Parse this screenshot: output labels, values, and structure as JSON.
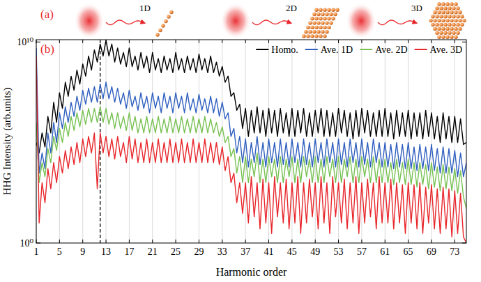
{
  "illustration": {
    "panel_label": "(a)",
    "labels": [
      "1D",
      "2D",
      "3D"
    ]
  },
  "chart_data": {
    "type": "line",
    "panel_label": "(b)",
    "x_label": "Harmonic order",
    "y_label": "HHG Intensity (arb.units)",
    "log": "y",
    "grid": true,
    "legend": "upper right",
    "xlim": [
      1,
      75
    ],
    "ylim": [
      1,
      13000000000.0
    ],
    "xticks": [
      1,
      5,
      9,
      13,
      17,
      21,
      25,
      29,
      33,
      37,
      41,
      45,
      49,
      53,
      57,
      61,
      65,
      69,
      73
    ],
    "yticks": [
      {
        "value": 1,
        "label": "10⁰"
      },
      {
        "value": 10000000000.0,
        "label": "10¹⁰"
      }
    ],
    "reference_lines": [
      {
        "x": 12,
        "line_style": "dashed",
        "color": "#000000"
      }
    ],
    "x": [
      1,
      1.5,
      2,
      2.5,
      3,
      3.5,
      4,
      4.5,
      5,
      5.5,
      6,
      6.5,
      7,
      7.5,
      8,
      8.5,
      9,
      9.5,
      10,
      10.5,
      11,
      11.5,
      12,
      12.5,
      13,
      13.5,
      14,
      14.5,
      15,
      15.5,
      16,
      16.5,
      17,
      17.5,
      18,
      18.5,
      19,
      19.5,
      20,
      20.5,
      21,
      21.5,
      22,
      22.5,
      23,
      23.5,
      24,
      24.5,
      25,
      25.5,
      26,
      26.5,
      27,
      27.5,
      28,
      28.5,
      29,
      29.5,
      30,
      30.5,
      31,
      31.5,
      32,
      32.5,
      33,
      33.5,
      34,
      34.5,
      35,
      35.5,
      36,
      36.5,
      37,
      37.5,
      38,
      38.5,
      39,
      39.5,
      40,
      40.5,
      41,
      41.5,
      42,
      42.5,
      43,
      43.5,
      44,
      44.5,
      45,
      45.5,
      46,
      46.5,
      47,
      47.5,
      48,
      48.5,
      49,
      49.5,
      50,
      50.5,
      51,
      51.5,
      52,
      52.5,
      53,
      53.5,
      54,
      54.5,
      55,
      55.5,
      56,
      56.5,
      57,
      57.5,
      58,
      58.5,
      59,
      59.5,
      60,
      60.5,
      61,
      61.5,
      62,
      62.5,
      63,
      63.5,
      64,
      64.5,
      65,
      65.5,
      66,
      66.5,
      67,
      67.5,
      68,
      68.5,
      69,
      69.5,
      70,
      70.5,
      71,
      71.5,
      72,
      72.5,
      73,
      73.5,
      74,
      74.5,
      75
    ],
    "series": [
      {
        "name": "Homo.",
        "color": "#000000",
        "values": [
          100000.0,
          30000.0,
          300000.0,
          60000.0,
          2000000.0,
          300000.0,
          10000000.0,
          1000000.0,
          30000000.0,
          5000000.0,
          100000000.0,
          20000000.0,
          200000000.0,
          40000000.0,
          400000000.0,
          80000000.0,
          800000000.0,
          200000000.0,
          2000000000.0,
          400000000.0,
          4000000000.0,
          1000000000.0,
          8000000000.0,
          2000000000.0,
          12000000000.0,
          2000000000.0,
          8000000000.0,
          1000000000.0,
          5000000000.0,
          800000000.0,
          3000000000.0,
          600000000.0,
          5000000000.0,
          600000000.0,
          2000000000.0,
          400000000.0,
          3000000000.0,
          500000000.0,
          2000000000.0,
          300000000.0,
          3000000000.0,
          400000000.0,
          1500000000.0,
          300000000.0,
          2000000000.0,
          400000000.0,
          1500000000.0,
          300000000.0,
          3000000000.0,
          400000000.0,
          1500000000.0,
          300000000.0,
          2000000000.0,
          400000000.0,
          1500000000.0,
          300000000.0,
          2500000000.0,
          400000000.0,
          1500000000.0,
          300000000.0,
          2000000000.0,
          300000000.0,
          1000000000.0,
          200000000.0,
          600000000.0,
          100000000.0,
          200000000.0,
          20000000.0,
          30000000.0,
          4000000.0,
          8000000.0,
          500000.0,
          5000000.0,
          200000.0,
          4000000.0,
          300000.0,
          6000000.0,
          300000.0,
          4000000.0,
          200000.0,
          5000000.0,
          300000.0,
          4000000.0,
          200000.0,
          5000000.0,
          300000.0,
          3000000.0,
          200000.0,
          5000000.0,
          200000.0,
          4000000.0,
          300000.0,
          5000000.0,
          200000.0,
          3000000.0,
          200000.0,
          4000000.0,
          300000.0,
          5000000.0,
          200000.0,
          4000000.0,
          200000.0,
          3000000.0,
          200000.0,
          5000000.0,
          300000.0,
          4000000.0,
          200000.0,
          3000000.0,
          150000.0,
          4000000.0,
          200000.0,
          5000000.0,
          300000.0,
          4000000.0,
          200000.0,
          3000000.0,
          200000.0,
          4000000.0,
          200000.0,
          5000000.0,
          200000.0,
          3000000.0,
          150000.0,
          4000000.0,
          200000.0,
          3000000.0,
          200000.0,
          4000000.0,
          150000.0,
          3000000.0,
          200000.0,
          3000000.0,
          150000.0,
          4000000.0,
          200000.0,
          3000000.0,
          150000.0,
          2000000.0,
          100000.0,
          3000000.0,
          150000.0,
          2000000.0,
          100000.0,
          2000000.0,
          100000.0,
          1500000.0,
          80000.0,
          100000.0
        ]
      },
      {
        "name": "Ave. 1D",
        "color": "#2f5fbf",
        "values": [
          5000000000.0,
          3000.0,
          30000.0,
          5000.0,
          300000.0,
          30000.0,
          1000000.0,
          100000.0,
          3000000.0,
          500000.0,
          6000000.0,
          1000000.0,
          10000000.0,
          2000000.0,
          20000000.0,
          4000000.0,
          40000000.0,
          8000000.0,
          50000000.0,
          10000000.0,
          60000000.0,
          10000000.0,
          80000000.0,
          15000000.0,
          100000000.0,
          15000000.0,
          60000000.0,
          10000000.0,
          50000000.0,
          8000000.0,
          30000000.0,
          5000000.0,
          40000000.0,
          6000000.0,
          20000000.0,
          4000000.0,
          30000000.0,
          5000000.0,
          20000000.0,
          3000000.0,
          30000000.0,
          5000000.0,
          20000000.0,
          3000000.0,
          30000000.0,
          5000000.0,
          20000000.0,
          3000000.0,
          30000000.0,
          5000000.0,
          20000000.0,
          3000000.0,
          30000000.0,
          4000000.0,
          15000000.0,
          3000000.0,
          25000000.0,
          4000000.0,
          15000000.0,
          3000000.0,
          20000000.0,
          3000000.0,
          15000000.0,
          2000000.0,
          10000000.0,
          1500000.0,
          3000000.0,
          200000.0,
          500000.0,
          30000.0,
          200000.0,
          10000.0,
          150000.0,
          6000.0,
          100000.0,
          10000.0,
          200000.0,
          8000.0,
          100000.0,
          6000.0,
          150000.0,
          10000.0,
          100000.0,
          6000.0,
          150000.0,
          8000.0,
          100000.0,
          6000.0,
          150000.0,
          10000.0,
          100000.0,
          6000.0,
          150000.0,
          8000.0,
          100000.0,
          6000.0,
          150000.0,
          10000.0,
          100000.0,
          6000.0,
          150000.0,
          10000.0,
          100000.0,
          6000.0,
          150000.0,
          8000.0,
          100000.0,
          6000.0,
          150000.0,
          10000.0,
          100000.0,
          6000.0,
          150000.0,
          8000.0,
          100000.0,
          6000.0,
          150000.0,
          10000.0,
          100000.0,
          6000.0,
          100000.0,
          6000.0,
          80000.0,
          5000.0,
          100000.0,
          6000.0,
          80000.0,
          5000.0,
          100000.0,
          5000.0,
          60000.0,
          4000.0,
          80000.0,
          5000.0,
          60000.0,
          4000.0,
          80000.0,
          4000.0,
          50000.0,
          3000.0,
          60000.0,
          3000.0,
          50000.0,
          3000.0,
          40000.0,
          2000.0,
          30000.0,
          2000.0,
          10000.0
        ]
      },
      {
        "name": "Ave. 2D",
        "color": "#77c152",
        "values": [
          1000000.0,
          1000.0,
          10000.0,
          2000.0,
          50000.0,
          10000.0,
          200000.0,
          40000.0,
          500000.0,
          100000.0,
          1000000.0,
          200000.0,
          2000000.0,
          400000.0,
          3000000.0,
          600000.0,
          4000000.0,
          800000.0,
          5000000.0,
          1000000.0,
          5000000.0,
          1000000.0,
          6000000.0,
          1000000.0,
          5000000.0,
          800000.0,
          3000000.0,
          500000.0,
          3000000.0,
          500000.0,
          2000000.0,
          400000.0,
          3000000.0,
          400000.0,
          2000000.0,
          300000.0,
          1500000.0,
          300000.0,
          2000000.0,
          300000.0,
          1500000.0,
          300000.0,
          2000000.0,
          300000.0,
          1500000.0,
          300000.0,
          2000000.0,
          300000.0,
          1500000.0,
          300000.0,
          2000000.0,
          300000.0,
          1500000.0,
          300000.0,
          2000000.0,
          300000.0,
          1500000.0,
          300000.0,
          2000000.0,
          300000.0,
          1500000.0,
          300000.0,
          1000000.0,
          200000.0,
          600000.0,
          100000.0,
          200000.0,
          20000.0,
          50000.0,
          3000.0,
          20000.0,
          1000.0,
          20000.0,
          1000.0,
          15000.0,
          2000.0,
          30000.0,
          1000.0,
          15000.0,
          1000.0,
          20000.0,
          2000.0,
          15000.0,
          1000.0,
          20000.0,
          1000.0,
          15000.0,
          2000.0,
          20000.0,
          1000.0,
          15000.0,
          1000.0,
          20000.0,
          2000.0,
          15000.0,
          1000.0,
          20000.0,
          1000.0,
          15000.0,
          1000.0,
          20000.0,
          2000.0,
          15000.0,
          1000.0,
          20000.0,
          1000.0,
          15000.0,
          2000.0,
          20000.0,
          1000.0,
          15000.0,
          1000.0,
          20000.0,
          2000.0,
          15000.0,
          1000.0,
          20000.0,
          1000.0,
          15000.0,
          1000.0,
          15000.0,
          1000.0,
          10000.0,
          800.0,
          15000.0,
          1000.0,
          10000.0,
          800.0,
          15000.0,
          800.0,
          10000.0,
          600.0,
          10000.0,
          800.0,
          8000.0,
          500.0,
          10000.0,
          600.0,
          6000.0,
          400.0,
          8000.0,
          500.0,
          6000.0,
          400.0,
          5000.0,
          300.0,
          4000.0,
          200.0,
          50
        ]
      },
      {
        "name": "Ave. 3D",
        "color": "#e8262b",
        "values": [
          2000000000.0,
          10,
          1000.0,
          100.0,
          5000.0,
          500.0,
          10000.0,
          1000.0,
          20000.0,
          3000.0,
          40000.0,
          5000.0,
          60000.0,
          8000.0,
          100000.0,
          10000.0,
          150000.0,
          20000.0,
          200000.0,
          30000.0,
          300000.0,
          500.0,
          300000.0,
          30000.0,
          200000.0,
          20000.0,
          150000.0,
          15000.0,
          200000.0,
          20000.0,
          100000.0,
          10000.0,
          200000.0,
          15000.0,
          150000.0,
          10000.0,
          100000.0,
          10000.0,
          150000.0,
          10000.0,
          100000.0,
          10000.0,
          150000.0,
          10000.0,
          100000.0,
          10000.0,
          150000.0,
          10000.0,
          100000.0,
          10000.0,
          150000.0,
          10000.0,
          100000.0,
          10000.0,
          150000.0,
          10000.0,
          100000.0,
          10000.0,
          150000.0,
          10000.0,
          100000.0,
          10000.0,
          100000.0,
          8000.0,
          60000.0,
          4000.0,
          20000.0,
          1000.0,
          3000.0,
          100.0,
          1000.0,
          30,
          1000.0,
          10,
          2000.0,
          20,
          1000.0,
          5,
          1500.0,
          10,
          1000.0,
          3,
          2000.0,
          20,
          1000.0,
          10,
          1500.0,
          5,
          1000.0,
          10,
          2000.0,
          3,
          1000.0,
          10,
          1500.0,
          20,
          1000.0,
          5,
          2000.0,
          10,
          1000.0,
          3,
          2000.0,
          20,
          1000.0,
          10,
          1500.0,
          5,
          1000.0,
          10,
          2000.0,
          3,
          1000.0,
          10,
          1500.0,
          20,
          1000.0,
          5,
          2000.0,
          10,
          1000.0,
          10,
          1500.0,
          5,
          1000.0,
          10,
          800.0,
          3,
          1000.0,
          10,
          800.0,
          5,
          1000.0,
          3,
          600.0,
          10,
          800.0,
          5,
          500.0,
          3,
          600.0,
          5,
          500.0,
          2,
          400.0,
          3,
          300.0,
          2,
          1
        ]
      }
    ]
  }
}
